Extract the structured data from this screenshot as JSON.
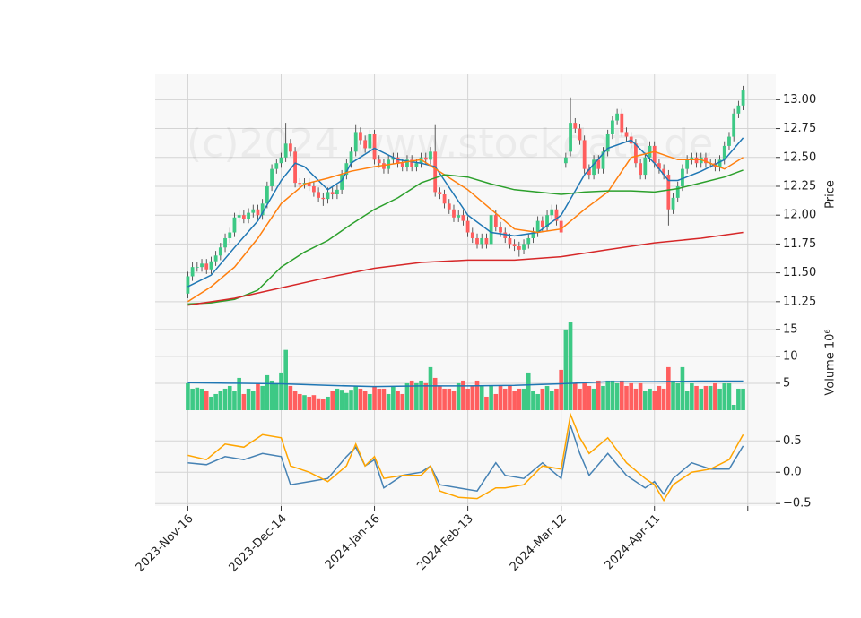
{
  "chart_data": [
    {
      "type": "candlestick",
      "watermark": "(c)2024 www.stockdata.de",
      "ylabel": "Price",
      "up_color": "#3dc985",
      "down_color": "#ff5e5e",
      "grid": true,
      "xlim": [
        -7,
        126
      ],
      "ylim": [
        11.14,
        13.22
      ],
      "yticks": [
        {
          "value": 11.25,
          "label": "11.25"
        },
        {
          "value": 11.5,
          "label": "11.50"
        },
        {
          "value": 11.75,
          "label": "11.75"
        },
        {
          "value": 12,
          "label": "12.00"
        },
        {
          "value": 12.25,
          "label": "12.25"
        },
        {
          "value": 12.5,
          "label": "12.50"
        },
        {
          "value": 12.75,
          "label": "12.75"
        },
        {
          "value": 13,
          "label": "13.00"
        }
      ],
      "open": [
        11.32,
        11.47,
        11.55,
        11.55,
        11.58,
        11.53,
        11.6,
        11.65,
        11.72,
        11.8,
        11.85,
        11.98,
        12.0,
        11.97,
        12.02,
        12.05,
        12.0,
        12.1,
        12.25,
        12.4,
        12.45,
        12.5,
        12.62,
        12.55,
        12.28,
        12.27,
        12.28,
        12.25,
        12.2,
        12.15,
        12.14,
        12.2,
        12.18,
        12.22,
        12.35,
        12.45,
        12.55,
        12.72,
        12.65,
        12.58,
        12.7,
        12.48,
        12.45,
        12.4,
        12.48,
        12.5,
        12.45,
        12.42,
        12.48,
        12.42,
        12.45,
        12.5,
        12.48,
        12.55,
        12.2,
        12.18,
        12.1,
        12.05,
        11.98,
        12.0,
        11.95,
        11.85,
        11.8,
        11.75,
        11.8,
        11.75,
        12.0,
        11.9,
        11.85,
        11.8,
        11.75,
        11.73,
        11.7,
        11.75,
        11.8,
        11.85,
        11.95,
        11.9,
        12.0,
        12.05,
        11.95,
        12.45,
        12.55,
        12.8,
        12.75,
        12.65,
        12.4,
        12.35,
        12.48,
        12.4,
        12.55,
        12.7,
        12.82,
        12.88,
        12.72,
        12.68,
        12.62,
        12.45,
        12.35,
        12.5,
        12.6,
        12.45,
        12.4,
        12.35,
        12.05,
        12.15,
        12.25,
        12.4,
        12.48,
        12.5,
        12.45,
        12.5,
        12.45,
        12.45,
        12.42,
        12.48,
        12.6,
        12.68,
        12.88,
        12.95
      ],
      "high": [
        11.51,
        11.59,
        11.59,
        11.62,
        11.62,
        11.64,
        11.69,
        11.76,
        11.84,
        11.89,
        12.02,
        12.04,
        12.04,
        12.06,
        12.09,
        12.09,
        12.14,
        12.29,
        12.44,
        12.49,
        12.54,
        12.8,
        12.66,
        12.59,
        12.32,
        12.32,
        12.32,
        12.29,
        12.24,
        12.19,
        12.24,
        12.24,
        12.26,
        12.39,
        12.49,
        12.59,
        12.78,
        12.76,
        12.69,
        12.74,
        12.74,
        12.52,
        12.49,
        12.52,
        12.54,
        12.54,
        12.49,
        12.52,
        12.52,
        12.49,
        12.54,
        12.54,
        12.59,
        12.78,
        12.24,
        12.22,
        12.14,
        12.09,
        12.04,
        12.04,
        11.99,
        11.89,
        11.84,
        11.84,
        11.84,
        12.04,
        12.04,
        11.94,
        11.89,
        11.84,
        11.79,
        11.77,
        11.79,
        11.84,
        11.89,
        11.99,
        11.99,
        12.04,
        12.09,
        12.09,
        11.99,
        12.54,
        13.02,
        12.84,
        12.79,
        12.69,
        12.44,
        12.52,
        12.52,
        12.59,
        12.74,
        12.86,
        12.92,
        12.92,
        12.76,
        12.72,
        12.66,
        12.49,
        12.54,
        12.64,
        12.64,
        12.49,
        12.44,
        12.39,
        12.19,
        12.29,
        12.44,
        12.52,
        12.54,
        12.54,
        12.54,
        12.54,
        12.49,
        12.49,
        12.52,
        12.64,
        12.72,
        12.92,
        12.99,
        13.12
      ],
      "low": [
        11.28,
        11.43,
        11.51,
        11.51,
        11.49,
        11.49,
        11.56,
        11.61,
        11.68,
        11.76,
        11.81,
        11.94,
        11.93,
        11.93,
        11.98,
        11.96,
        11.96,
        12.06,
        12.21,
        12.36,
        12.41,
        12.46,
        12.51,
        12.24,
        12.23,
        12.23,
        12.21,
        12.16,
        12.11,
        12.08,
        12.1,
        12.14,
        12.14,
        12.18,
        12.31,
        12.41,
        12.51,
        12.61,
        12.54,
        12.54,
        12.44,
        12.41,
        12.36,
        12.36,
        12.44,
        12.41,
        12.38,
        12.38,
        12.38,
        12.38,
        12.41,
        12.44,
        12.44,
        12.16,
        12.14,
        12.06,
        12.01,
        11.94,
        11.94,
        11.91,
        11.81,
        11.76,
        11.71,
        11.71,
        11.71,
        11.71,
        11.86,
        11.81,
        11.76,
        11.71,
        11.69,
        11.64,
        11.66,
        11.71,
        11.76,
        11.81,
        11.86,
        11.86,
        11.96,
        11.91,
        11.75,
        12.41,
        12.51,
        12.71,
        12.61,
        12.36,
        12.31,
        12.31,
        12.36,
        12.36,
        12.51,
        12.66,
        12.78,
        12.68,
        12.64,
        12.58,
        12.41,
        12.31,
        12.31,
        12.46,
        12.41,
        12.36,
        12.31,
        11.91,
        12.01,
        12.11,
        12.21,
        12.36,
        12.44,
        12.41,
        12.41,
        12.41,
        12.41,
        12.38,
        12.38,
        12.44,
        12.56,
        12.64,
        12.84,
        12.91
      ],
      "close": [
        11.47,
        11.55,
        11.55,
        11.58,
        11.53,
        11.6,
        11.65,
        11.72,
        11.8,
        11.85,
        11.98,
        12.0,
        11.97,
        12.02,
        12.05,
        12.0,
        12.1,
        12.25,
        12.4,
        12.45,
        12.5,
        12.62,
        12.55,
        12.28,
        12.27,
        12.28,
        12.25,
        12.2,
        12.15,
        12.14,
        12.2,
        12.18,
        12.22,
        12.35,
        12.45,
        12.55,
        12.72,
        12.65,
        12.58,
        12.7,
        12.48,
        12.45,
        12.4,
        12.48,
        12.5,
        12.45,
        12.42,
        12.48,
        12.42,
        12.45,
        12.5,
        12.48,
        12.55,
        12.2,
        12.18,
        12.1,
        12.05,
        11.98,
        12.0,
        11.95,
        11.85,
        11.8,
        11.75,
        11.8,
        11.75,
        12.0,
        11.9,
        11.85,
        11.8,
        11.75,
        11.73,
        11.7,
        11.75,
        11.8,
        11.85,
        11.95,
        11.9,
        12.0,
        12.05,
        11.95,
        11.85,
        12.5,
        12.8,
        12.75,
        12.65,
        12.4,
        12.35,
        12.48,
        12.4,
        12.55,
        12.7,
        12.82,
        12.88,
        12.72,
        12.68,
        12.62,
        12.45,
        12.35,
        12.5,
        12.6,
        12.45,
        12.4,
        12.35,
        12.05,
        12.15,
        12.25,
        12.4,
        12.48,
        12.5,
        12.45,
        12.5,
        12.45,
        12.45,
        12.42,
        12.48,
        12.6,
        12.68,
        12.88,
        12.95,
        13.08
      ],
      "lines": [
        {
          "color": "#1f77b4",
          "x": [
            0,
            5,
            10,
            15,
            20,
            23,
            25,
            30,
            33,
            35,
            40,
            45,
            50,
            53,
            55,
            60,
            65,
            70,
            75,
            80,
            85,
            90,
            95,
            100,
            103,
            105,
            110,
            115,
            119
          ],
          "values": [
            11.38,
            11.48,
            11.72,
            11.95,
            12.3,
            12.45,
            12.42,
            12.22,
            12.3,
            12.45,
            12.58,
            12.48,
            12.45,
            12.42,
            12.3,
            12.0,
            11.85,
            11.82,
            11.85,
            12.0,
            12.35,
            12.58,
            12.65,
            12.45,
            12.3,
            12.3,
            12.38,
            12.48,
            12.67
          ]
        },
        {
          "color": "#ff7f0e",
          "x": [
            0,
            5,
            10,
            15,
            20,
            25,
            30,
            35,
            40,
            45,
            50,
            55,
            60,
            65,
            70,
            75,
            80,
            85,
            90,
            95,
            100,
            105,
            110,
            115,
            119
          ],
          "values": [
            11.25,
            11.38,
            11.55,
            11.8,
            12.1,
            12.27,
            12.32,
            12.38,
            12.42,
            12.45,
            12.48,
            12.35,
            12.22,
            12.05,
            11.88,
            11.85,
            11.88,
            12.05,
            12.2,
            12.5,
            12.55,
            12.48,
            12.48,
            12.4,
            12.5
          ]
        },
        {
          "color": "#2ca02c",
          "x": [
            0,
            5,
            10,
            15,
            20,
            25,
            30,
            35,
            40,
            45,
            50,
            55,
            60,
            65,
            70,
            75,
            80,
            85,
            90,
            95,
            100,
            105,
            110,
            115,
            119
          ],
          "values": [
            11.23,
            11.24,
            11.27,
            11.35,
            11.55,
            11.68,
            11.78,
            11.92,
            12.05,
            12.15,
            12.28,
            12.35,
            12.33,
            12.27,
            12.22,
            12.2,
            12.18,
            12.2,
            12.21,
            12.21,
            12.2,
            12.23,
            12.28,
            12.33,
            12.39
          ]
        },
        {
          "color": "#d62728",
          "x": [
            0,
            10,
            20,
            30,
            40,
            50,
            60,
            70,
            80,
            90,
            100,
            110,
            119
          ],
          "values": [
            11.22,
            11.28,
            11.37,
            11.46,
            11.54,
            11.59,
            11.61,
            11.61,
            11.64,
            11.7,
            11.76,
            11.8,
            11.85
          ]
        }
      ]
    },
    {
      "type": "volume",
      "ylabel": "Volume  10⁶",
      "xlim": [
        -7,
        126
      ],
      "ylim": [
        0,
        17.8
      ],
      "yticks": [
        5,
        10,
        15
      ],
      "grid": true,
      "values": [
        5.0,
        4.0,
        4.2,
        4.0,
        3.5,
        2.5,
        3.0,
        3.5,
        4.0,
        4.5,
        3.5,
        6.0,
        3.0,
        4.0,
        3.5,
        5.0,
        4.5,
        6.5,
        5.5,
        5.0,
        7.0,
        11.2,
        4.5,
        3.5,
        3.0,
        2.8,
        2.5,
        2.8,
        2.2,
        2.0,
        2.5,
        3.5,
        4.0,
        3.8,
        3.2,
        3.8,
        4.5,
        4.0,
        3.5,
        3.0,
        4.5,
        4.0,
        4.0,
        3.0,
        4.5,
        3.5,
        3.0,
        5.0,
        5.5,
        5.0,
        5.5,
        5.0,
        8.0,
        6.0,
        4.5,
        4.0,
        4.0,
        3.5,
        5.0,
        5.5,
        4.0,
        4.5,
        5.5,
        4.5,
        2.5,
        4.5,
        3.0,
        4.5,
        4.0,
        4.5,
        3.5,
        4.0,
        4.0,
        7.0,
        3.5,
        3.0,
        4.0,
        4.5,
        3.5,
        4.0,
        7.5,
        15.0,
        16.3,
        5.0,
        4.0,
        5.0,
        4.5,
        4.0,
        5.5,
        4.5,
        5.5,
        5.5,
        5.0,
        5.5,
        4.5,
        5.0,
        4.0,
        5.0,
        3.5,
        4.0,
        3.5,
        4.5,
        4.0,
        8.0,
        5.5,
        5.0,
        8.0,
        3.5,
        5.0,
        4.5,
        4.0,
        4.5,
        4.5,
        5.0,
        4.0,
        5.0,
        5.0,
        1.0,
        4.0,
        4.0
      ],
      "lines": [
        {
          "color": "#1f77b4",
          "x": [
            0,
            10,
            20,
            30,
            40,
            50,
            60,
            70,
            80,
            90,
            100,
            110,
            119
          ],
          "values": [
            5.1,
            5.0,
            4.9,
            4.6,
            4.4,
            4.5,
            4.5,
            4.6,
            4.9,
            5.3,
            5.3,
            5.4,
            5.4
          ]
        }
      ]
    },
    {
      "type": "line",
      "xlim": [
        -7,
        126
      ],
      "ylim": [
        -0.54,
        0.99
      ],
      "grid": true,
      "yticks": [
        {
          "value": -0.5,
          "label": "−0.5"
        },
        {
          "value": 0,
          "label": "0.0"
        },
        0.5
      ],
      "xticks": [
        {
          "value": 0,
          "label": "2023-Nov-16"
        },
        {
          "value": 20,
          "label": "2023-Dec-14"
        },
        {
          "value": 40,
          "label": "2024-Jan-16"
        },
        {
          "value": 60,
          "label": "2024-Feb-13"
        },
        {
          "value": 80,
          "label": "2024-Mar-12"
        },
        {
          "value": 100,
          "label": "2024-Apr-11"
        },
        {
          "value": 120,
          "label": null
        }
      ],
      "lines": [
        {
          "color": "#4682b4",
          "x": [
            0,
            4,
            8,
            12,
            16,
            20,
            22,
            26,
            30,
            34,
            36,
            38,
            40,
            42,
            46,
            50,
            52,
            54,
            58,
            62,
            66,
            68,
            72,
            76,
            80,
            82,
            84,
            86,
            90,
            94,
            98,
            100,
            102,
            104,
            108,
            112,
            116,
            119
          ],
          "values": [
            0.15,
            0.12,
            0.25,
            0.2,
            0.3,
            0.25,
            -0.2,
            -0.15,
            -0.1,
            0.25,
            0.4,
            0.1,
            0.2,
            -0.25,
            -0.05,
            0.0,
            0.1,
            -0.2,
            -0.25,
            -0.3,
            0.15,
            -0.05,
            -0.1,
            0.15,
            -0.1,
            0.75,
            0.3,
            -0.05,
            0.3,
            -0.05,
            -0.25,
            -0.15,
            -0.35,
            -0.1,
            0.15,
            0.05,
            0.05,
            0.42
          ]
        },
        {
          "color": "#ffa500",
          "x": [
            0,
            4,
            8,
            12,
            16,
            20,
            22,
            26,
            30,
            34,
            36,
            38,
            40,
            42,
            46,
            50,
            52,
            54,
            58,
            62,
            66,
            68,
            72,
            76,
            80,
            82,
            84,
            86,
            90,
            94,
            98,
            100,
            102,
            104,
            108,
            112,
            116,
            119
          ],
          "values": [
            0.27,
            0.2,
            0.45,
            0.4,
            0.6,
            0.55,
            0.1,
            0.0,
            -0.15,
            0.1,
            0.45,
            0.1,
            0.25,
            -0.1,
            -0.05,
            -0.05,
            0.1,
            -0.3,
            -0.4,
            -0.42,
            -0.25,
            -0.25,
            -0.2,
            0.1,
            0.05,
            0.92,
            0.55,
            0.3,
            0.55,
            0.15,
            -0.1,
            -0.2,
            -0.45,
            -0.2,
            0.0,
            0.05,
            0.2,
            0.6
          ]
        }
      ]
    }
  ]
}
